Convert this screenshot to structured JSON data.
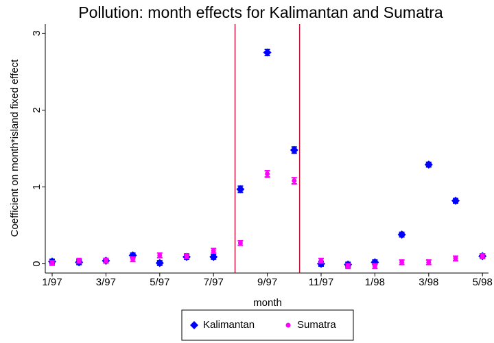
{
  "chart_data": {
    "type": "scatter",
    "title": "Pollution: month effects for Kalimantan and Sumatra",
    "x_label": "month",
    "y_label": "Coefficient on month*island fixed effect",
    "categories": [
      "1/97",
      null,
      "3/97",
      null,
      "5/97",
      null,
      "7/97",
      null,
      "9/97",
      null,
      "11/97",
      null,
      "1/98",
      null,
      "3/98",
      null,
      "5/98"
    ],
    "series": [
      {
        "name": "Kalimantan",
        "color": "#0000ff",
        "marker": "diamond",
        "values": [
          0.03,
          0.02,
          0.04,
          0.11,
          0.01,
          0.09,
          0.09,
          0.97,
          2.75,
          1.48,
          0.0,
          -0.01,
          0.02,
          0.38,
          1.29,
          0.82,
          0.1
        ],
        "errors": [
          0.03,
          0.03,
          0.03,
          0.03,
          0.03,
          0.03,
          0.03,
          0.04,
          0.04,
          0.04,
          0.03,
          0.03,
          0.03,
          0.03,
          0.03,
          0.03,
          0.03
        ]
      },
      {
        "name": "Sumatra",
        "color": "#ff00ff",
        "marker": "circle",
        "values": [
          0.01,
          0.04,
          0.04,
          0.06,
          0.11,
          0.1,
          0.17,
          0.27,
          1.17,
          1.08,
          0.04,
          -0.03,
          -0.03,
          0.02,
          0.02,
          0.07,
          0.1
        ],
        "errors": [
          0.03,
          0.03,
          0.03,
          0.03,
          0.03,
          0.03,
          0.03,
          0.03,
          0.04,
          0.04,
          0.03,
          0.03,
          0.03,
          0.03,
          0.03,
          0.03,
          0.03
        ]
      }
    ],
    "vlines": [
      6.8,
      9.2
    ],
    "vline_color": "#c0143c",
    "ylim": [
      -0.12,
      3.12
    ],
    "yticks": [
      0,
      1,
      2,
      3
    ],
    "legend": "bottom"
  }
}
